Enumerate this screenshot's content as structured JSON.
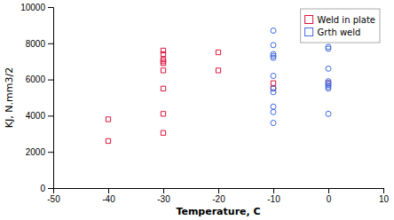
{
  "chart_data": {
    "type": "scatter",
    "xlabel": "Temperature, C",
    "ylabel": "KJ, N.mm3/2",
    "xlim": [
      -50,
      10
    ],
    "ylim": [
      0,
      10000
    ],
    "xticks": [
      -50,
      -40,
      -30,
      -20,
      -10,
      0,
      10
    ],
    "yticks": [
      0,
      2000,
      4000,
      6000,
      8000,
      10000
    ],
    "grid": false,
    "legend": "upper right",
    "series": [
      {
        "name": "Weld in plate",
        "color": "#dc143c",
        "marker": "square",
        "x": [
          -40,
          -40,
          -30,
          -30,
          -30,
          -30,
          -30,
          -30,
          -30,
          -30,
          -30,
          -20,
          -20,
          -10,
          -10,
          0
        ],
        "values": [
          3800,
          2600,
          7600,
          7400,
          7100,
          7000,
          6900,
          6500,
          5500,
          4100,
          3050,
          7500,
          6500,
          5800,
          5500,
          5800
        ]
      },
      {
        "name": "Grth weld",
        "color": "#4169e1",
        "marker": "circle",
        "x": [
          -10,
          -10,
          -10,
          -10,
          -10,
          -10,
          -10,
          -10,
          -10,
          -10,
          -10,
          0,
          0,
          0,
          0,
          0,
          0,
          0,
          0,
          0
        ],
        "values": [
          8700,
          7900,
          7400,
          7300,
          7200,
          6200,
          5500,
          5300,
          4500,
          4200,
          3600,
          7800,
          7700,
          6600,
          5900,
          5800,
          5700,
          5600,
          5500,
          4100
        ]
      }
    ]
  }
}
